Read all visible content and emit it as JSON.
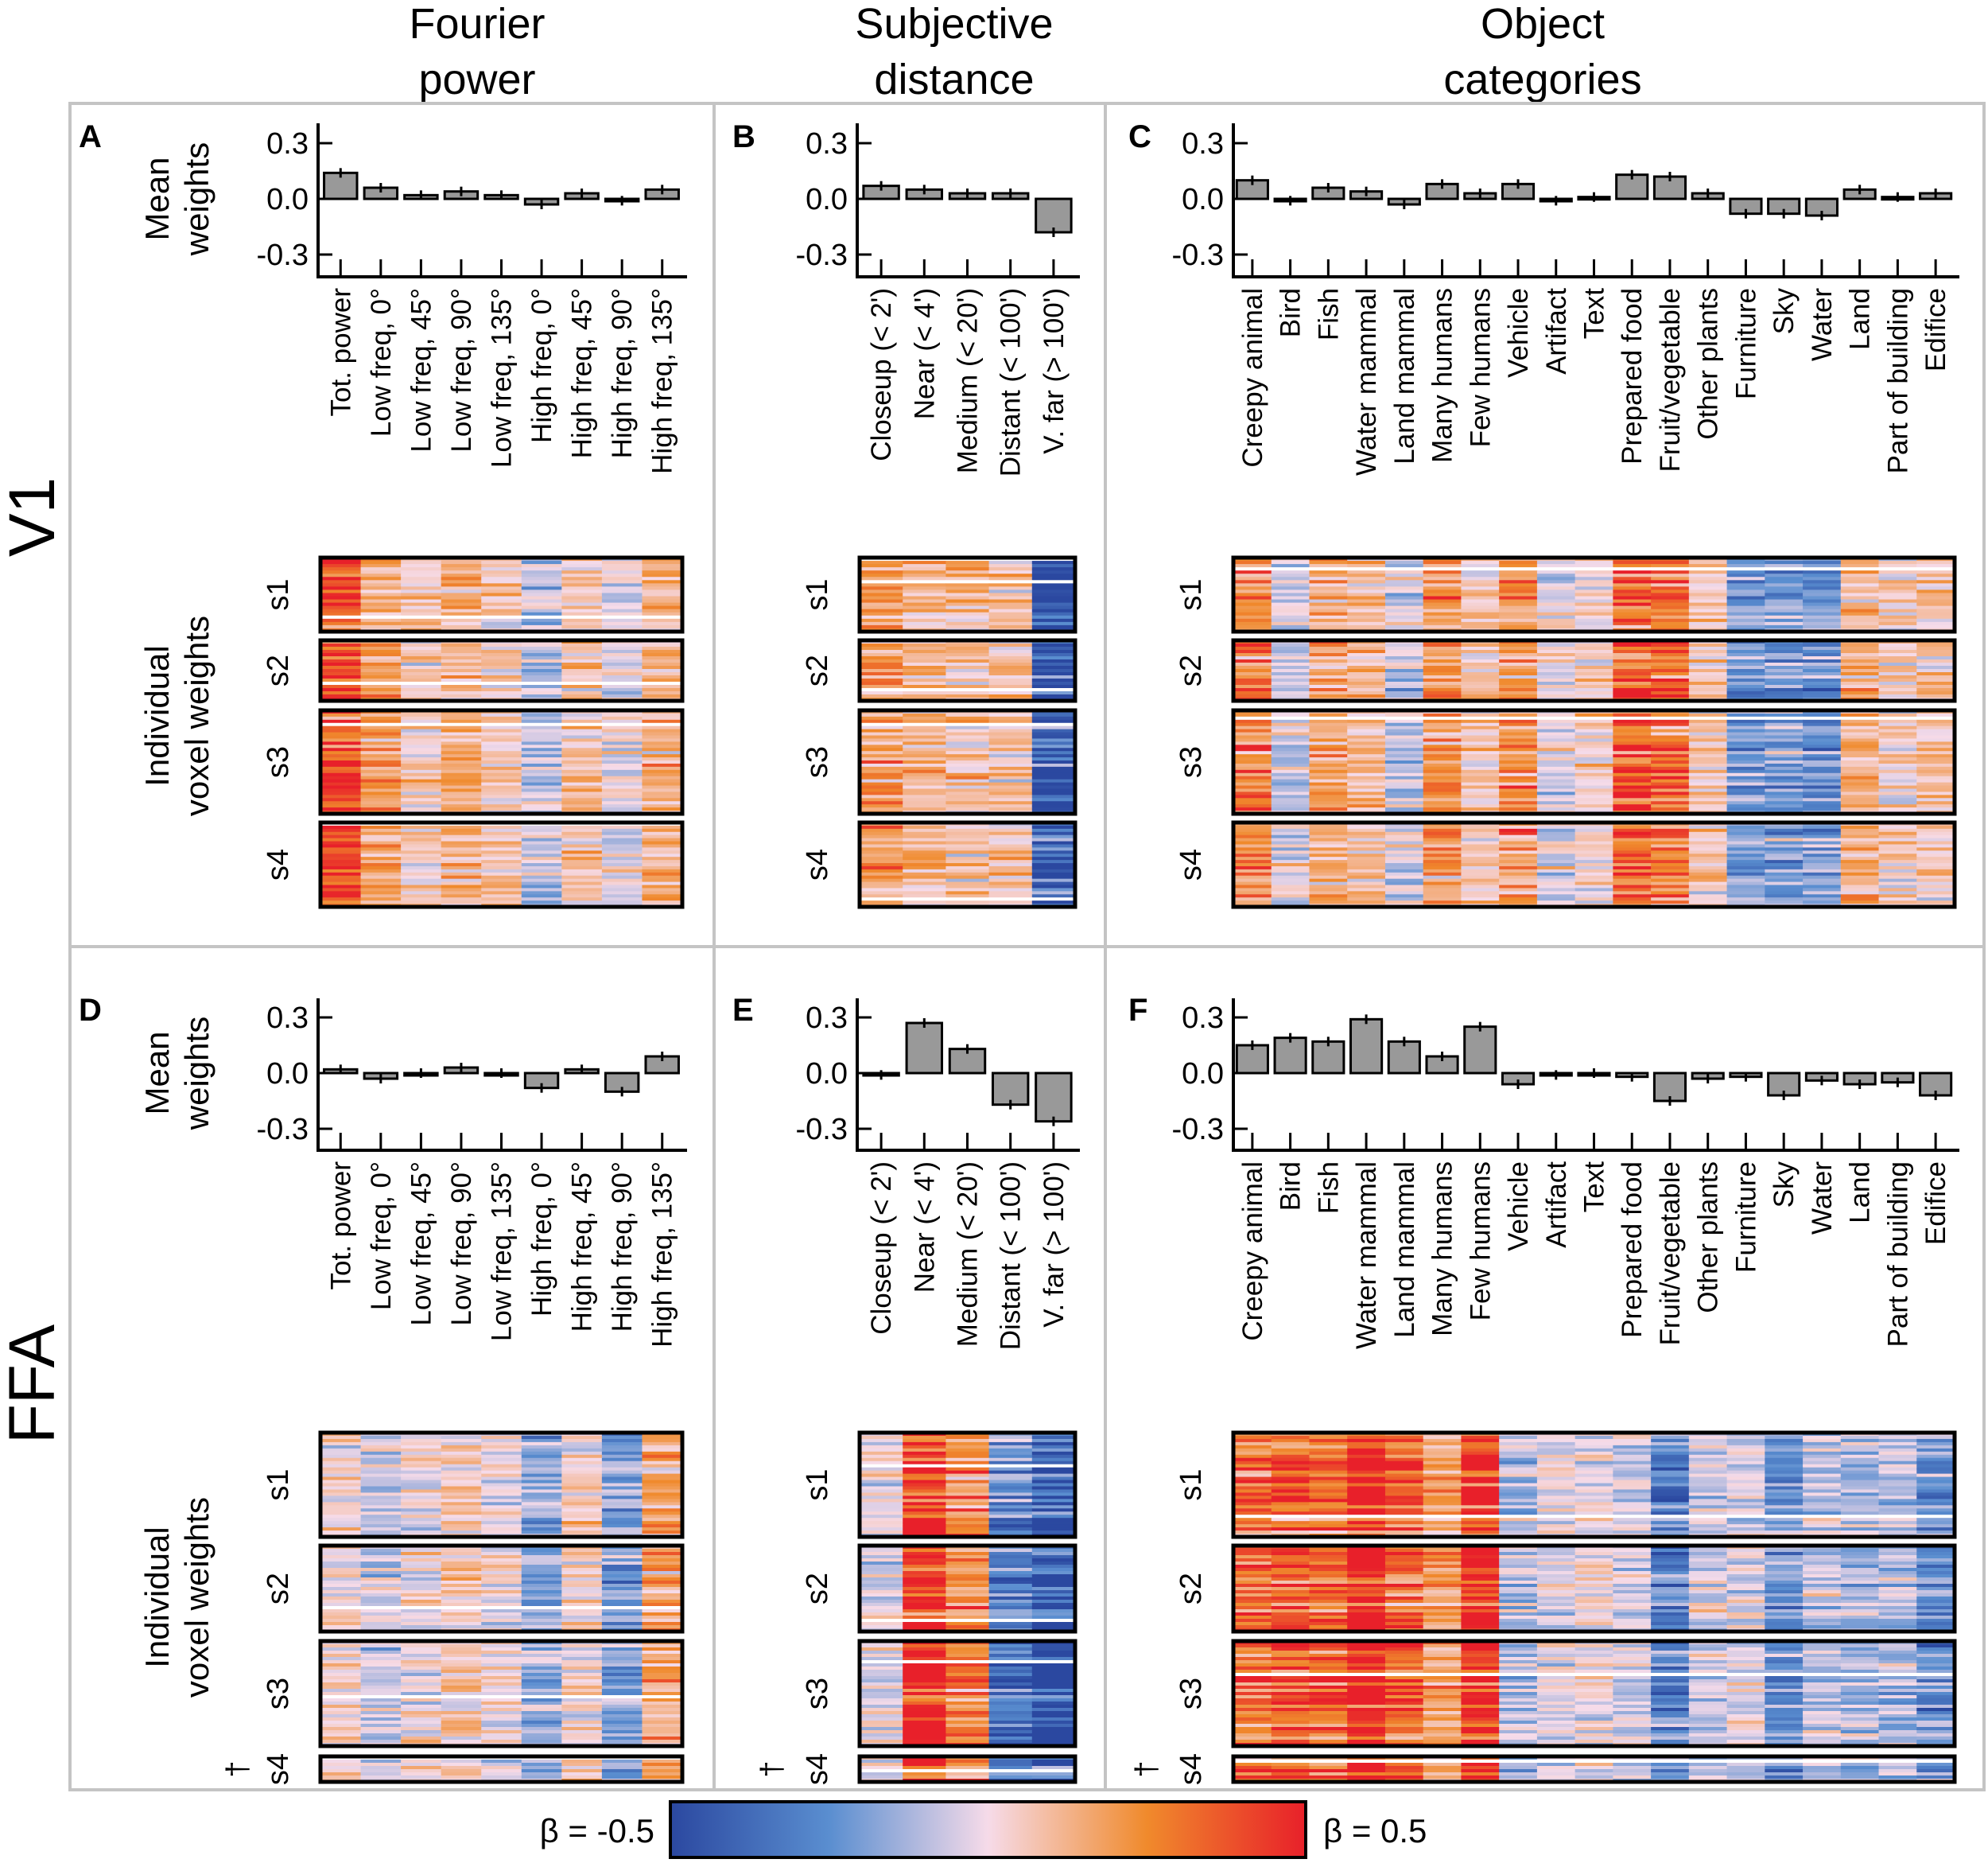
{
  "column_headers": {
    "fourier": [
      "Fourier",
      "power"
    ],
    "distance": [
      "Subjective",
      "distance"
    ],
    "objects": [
      "Object",
      "categories"
    ]
  },
  "row_labels": {
    "v1": "V1",
    "ffa": "FFA"
  },
  "axis_labels": {
    "mean": [
      "Mean",
      "weights"
    ],
    "individual": [
      "Individual",
      "voxel weights"
    ]
  },
  "subjects": [
    "s1",
    "s2",
    "s3",
    "s4"
  ],
  "dagger": "†",
  "colorbar": {
    "min_label": "β = -0.5",
    "max_label": "β = 0.5",
    "range": [
      -0.5,
      0.5
    ],
    "colors": [
      "#2b48a0",
      "#5a8ed0",
      "#f6dbe9",
      "#f08a2c",
      "#e8202a"
    ]
  },
  "bar_color": "#999999",
  "chart_data": [
    {
      "panel": "A",
      "region": "V1",
      "feature_space": "Fourier power",
      "type": "bar",
      "ylabel": "Mean weights",
      "yticks": [
        "0.3",
        "0.0",
        "-0.3"
      ],
      "ylim": [
        -0.42,
        0.41
      ],
      "categories": [
        "Tot. power",
        "Low freq, 0°",
        "Low freq, 45°",
        "Low freq, 90°",
        "Low freq, 135°",
        "High freq, 0°",
        "High freq, 45°",
        "High freq, 90°",
        "High freq, 135°"
      ],
      "values": [
        0.14,
        0.06,
        0.02,
        0.04,
        0.02,
        -0.03,
        0.03,
        -0.01,
        0.05
      ]
    },
    {
      "panel": "B",
      "region": "V1",
      "feature_space": "Subjective distance",
      "type": "bar",
      "yticks": [
        "0.3",
        "0.0",
        "-0.3"
      ],
      "ylim": [
        -0.42,
        0.41
      ],
      "categories": [
        "Closeup (< 2')",
        "Near (< 4')",
        "Medium (< 20')",
        "Distant (< 100')",
        "V. far (> 100')"
      ],
      "values": [
        0.07,
        0.05,
        0.03,
        0.03,
        -0.18
      ]
    },
    {
      "panel": "C",
      "region": "V1",
      "feature_space": "Object categories",
      "type": "bar",
      "yticks": [
        "0.3",
        "0.0",
        "-0.3"
      ],
      "ylim": [
        -0.42,
        0.41
      ],
      "categories": [
        "Creepy animal",
        "Bird",
        "Fish",
        "Water mammal",
        "Land mammal",
        "Many humans",
        "Few humans",
        "Vehicle",
        "Artifact",
        "Text",
        "Prepared food",
        "Fruit/vegetable",
        "Other plants",
        "Furniture",
        "Sky",
        "Water",
        "Land",
        "Part of building",
        "Edifice"
      ],
      "values": [
        0.1,
        -0.01,
        0.06,
        0.04,
        -0.03,
        0.08,
        0.03,
        0.08,
        -0.01,
        0.01,
        0.13,
        0.12,
        0.03,
        -0.08,
        -0.08,
        -0.09,
        0.05,
        0.01,
        0.03
      ]
    },
    {
      "panel": "D",
      "region": "FFA",
      "feature_space": "Fourier power",
      "type": "bar",
      "yticks": [
        "0.3",
        "0.0",
        "-0.3"
      ],
      "ylim": [
        -0.42,
        0.41
      ],
      "categories": [
        "Tot. power",
        "Low freq, 0°",
        "Low freq, 45°",
        "Low freq, 90°",
        "Low freq, 135°",
        "High freq, 0°",
        "High freq, 45°",
        "High freq, 90°",
        "High freq, 135°"
      ],
      "values": [
        0.02,
        -0.03,
        0.0,
        0.03,
        0.0,
        -0.08,
        0.02,
        -0.1,
        0.09
      ]
    },
    {
      "panel": "E",
      "region": "FFA",
      "feature_space": "Subjective distance",
      "type": "bar",
      "yticks": [
        "0.3",
        "0.0",
        "-0.3"
      ],
      "ylim": [
        -0.42,
        0.41
      ],
      "categories": [
        "Closeup (< 2')",
        "Near (< 4')",
        "Medium (< 20')",
        "Distant (< 100')",
        "V. far (> 100')"
      ],
      "values": [
        -0.01,
        0.27,
        0.13,
        -0.17,
        -0.26
      ]
    },
    {
      "panel": "F",
      "region": "FFA",
      "feature_space": "Object categories",
      "type": "bar",
      "yticks": [
        "0.3",
        "0.0",
        "-0.3"
      ],
      "ylim": [
        -0.42,
        0.41
      ],
      "categories": [
        "Creepy animal",
        "Bird",
        "Fish",
        "Water mammal",
        "Land mammal",
        "Many humans",
        "Few humans",
        "Vehicle",
        "Artifact",
        "Text",
        "Prepared food",
        "Fruit/vegetable",
        "Other plants",
        "Furniture",
        "Sky",
        "Water",
        "Land",
        "Part of building",
        "Edifice"
      ],
      "values": [
        0.15,
        0.19,
        0.17,
        0.29,
        0.17,
        0.09,
        0.25,
        -0.06,
        -0.01,
        0.0,
        -0.02,
        -0.15,
        -0.03,
        -0.02,
        -0.12,
        -0.04,
        -0.06,
        -0.05,
        -0.12
      ]
    }
  ]
}
